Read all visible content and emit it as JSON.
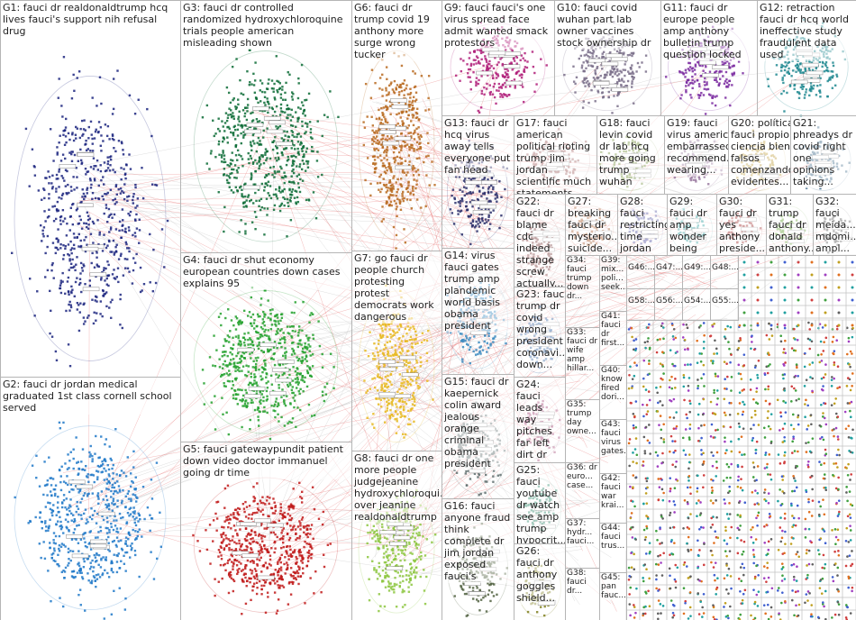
{
  "groups": [
    {
      "label": "G1: fauci dr realdonaldtrump hcq lives fauci's support nih refusal drug"
    },
    {
      "label": "G2: fauci dr jordan medical graduated 1st class cornell school served"
    },
    {
      "label": "G3: fauci dr controlled randomized hydroxychloroquine trials people american misleading shown"
    },
    {
      "label": "G4: fauci dr shut economy european countries down cases explains 95"
    },
    {
      "label": "G5: fauci gatewaypundit patient down video doctor immanuel going dr time"
    },
    {
      "label": "G6: fauci dr trump covid 19 anthony more surge wrong tucker"
    },
    {
      "label": "G7: go fauci dr people church protesting protest democrats work dangerous"
    },
    {
      "label": "G8: fauci dr one more people judgejeanine hydroxychloroqui... over jeanine realdonaldtrump"
    },
    {
      "label": "G9: fauci fauci's one virus spread face admit wanted smack protestors"
    },
    {
      "label": "G10: fauci covid wuhan part lab owner vaccines stock ownership dr"
    },
    {
      "label": "G11: fauci dr europe people amp anthony bulletin trump question locked"
    },
    {
      "label": "G12: retraction fauci dr hcq world ineffective study fraudulent data used"
    },
    {
      "label": "G13: fauci dr hcq virus away tells everyone put fan head"
    },
    {
      "label": "G14: virus fauci gates trump amp plandemic world basis obama president"
    },
    {
      "label": "G15: fauci dr kaepernick colin award jealous orange criminal obama president"
    },
    {
      "label": "G16: fauci anyone fraud think complete dr jim jordan exposed fauci's"
    },
    {
      "label": "G17: fauci american political rioting trump jim jordan scientific much statements"
    },
    {
      "label": "G18: fauci levin covid dr lab hcq more going trump wuhan"
    },
    {
      "label": "G19: fauci virus america embarrassed recommend... wearing..."
    },
    {
      "label": "G20: política fauci propio ciencia bien falsos comenzando evidentes..."
    },
    {
      "label": "G21: phreadys dr covid right one opinions taking..."
    },
    {
      "label": "G22: fauci dr blame cdc indeed strange screw actually..."
    },
    {
      "label": "G23: fauci trump dr covid wrong president coronavi... down..."
    },
    {
      "label": "G24: fauci leads way pitches far left dirt dr virus fraud"
    },
    {
      "label": "G25: fauci youtube dr watch see amp trump hypocrit..."
    },
    {
      "label": "G26: fauci dr anthony goggles shield..."
    },
    {
      "label": "G27: breaking fauci dr mysterio... suicide..."
    },
    {
      "label": "G28: fauci restricting time jordan nothing..."
    },
    {
      "label": "G29: fauci dr amp wonder being covid..."
    },
    {
      "label": "G30: fauci dr yes anthony preside..."
    },
    {
      "label": "G31: trump fauci dr donald anthony..."
    },
    {
      "label": "G32: fauci meida... mdomi... ampl..."
    },
    {
      "label": "G34: fauci trump down dr..."
    },
    {
      "label": "G33: fauci dr wife amp hillar..."
    },
    {
      "label": "G35: trump day owne..."
    },
    {
      "label": "G36: dr euro... case..."
    },
    {
      "label": "G37: hydr... fauci..."
    },
    {
      "label": "G38: fauci dr..."
    },
    {
      "label": "G39: mix... poli... seek..."
    },
    {
      "label": "G41: fauci dr first..."
    },
    {
      "label": "G40: know fired dori..."
    },
    {
      "label": "G43: fauci virus gates..."
    },
    {
      "label": "G42: fauci war krai..."
    },
    {
      "label": "G44: fauci trus..."
    },
    {
      "label": "G45: pan fauc..."
    },
    {
      "label": "G46:..."
    },
    {
      "label": "G47:..."
    },
    {
      "label": "G49:..."
    },
    {
      "label": "G48:..."
    },
    {
      "label": "G58:..."
    },
    {
      "label": "G56:..."
    },
    {
      "label": "G54:..."
    },
    {
      "label": "G55:..."
    }
  ]
}
